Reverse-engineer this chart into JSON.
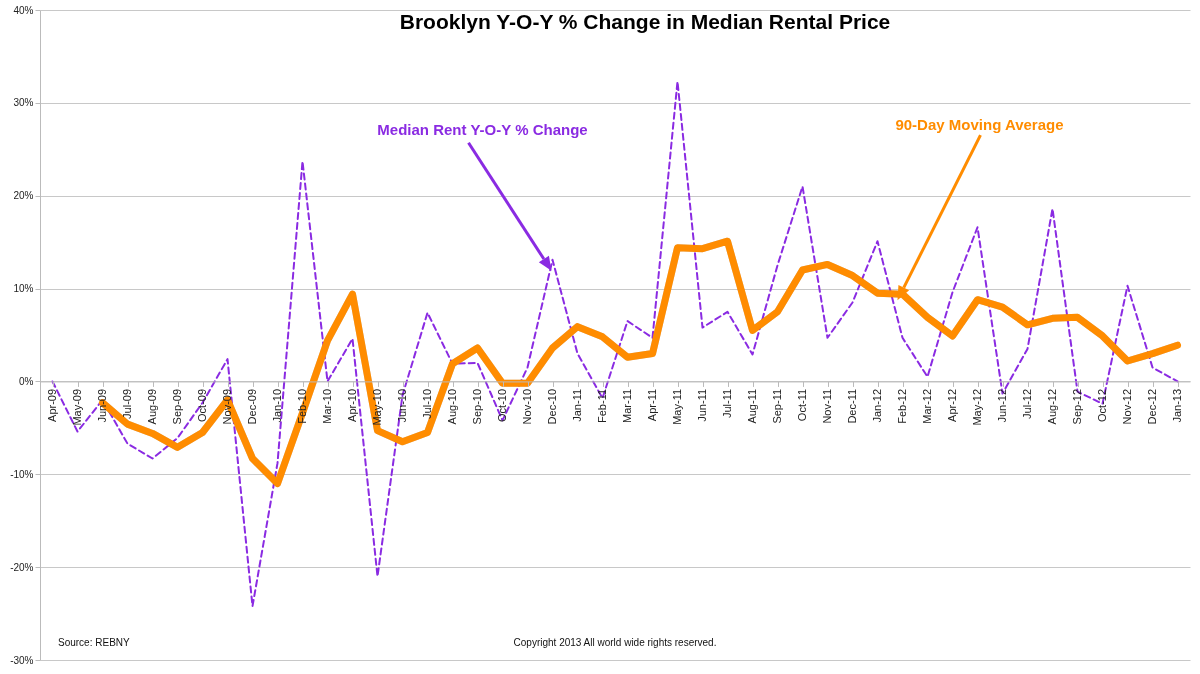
{
  "chart_data": {
    "type": "line",
    "title": "Brooklyn Y-O-Y % Change in Median Rental Price",
    "categories": [
      "Apr-09",
      "May-09",
      "Jun-09",
      "Jul-09",
      "Aug-09",
      "Sep-09",
      "Oct-09",
      "Nov-09",
      "Dec-09",
      "Jan-10",
      "Feb-10",
      "Mar-10",
      "Apr-10",
      "May-10",
      "Jun-10",
      "Jul-10",
      "Aug-10",
      "Sep-10",
      "Oct-10",
      "Nov-10",
      "Dec-10",
      "Jan-11",
      "Feb-11",
      "Mar-11",
      "Apr-11",
      "May-11",
      "Jun-11",
      "Jul-11",
      "Aug-11",
      "Sep-11",
      "Oct-11",
      "Nov-11",
      "Dec-11",
      "Jan-12",
      "Feb-12",
      "Mar-12",
      "Apr-12",
      "May-12",
      "Jun-12",
      "Jul-12",
      "Aug-12",
      "Sep-12",
      "Oct-12",
      "Nov-12",
      "Dec-12",
      "Jan-13"
    ],
    "series": [
      {
        "name": "Median Rent Y-O-Y % Change",
        "color": "#8a2be2",
        "line_style": "dashed",
        "values": [
          0,
          -5.4,
          -2,
          -6.7,
          -8.3,
          -6.1,
          -2.3,
          2.4,
          -24.2,
          -8.8,
          23.7,
          0,
          4.6,
          -21,
          -1.5,
          7.4,
          1.9,
          2,
          -4.2,
          1.5,
          13.1,
          3,
          -1.8,
          6.5,
          4.7,
          32.3,
          5.8,
          7.5,
          2.9,
          12.5,
          21,
          4.7,
          8.5,
          15.1,
          4.7,
          0.5,
          9.6,
          16.6,
          -1.3,
          3.5,
          18.6,
          -1.1,
          -2.4,
          10.3,
          1.5,
          0
        ]
      },
      {
        "name": "90-Day Moving Average",
        "color": "#ff8c00",
        "line_style": "solid",
        "values": [
          null,
          null,
          -2.3,
          -4.6,
          -5.6,
          -7.1,
          -5.5,
          -2,
          -8.3,
          -11,
          -3.4,
          4.4,
          9.4,
          -5.3,
          -6.5,
          -5.5,
          1.9,
          3.6,
          -0.2,
          -0.2,
          3.6,
          5.9,
          4.8,
          2.6,
          3,
          14.4,
          14.3,
          15.1,
          5.5,
          7.5,
          12,
          12.6,
          11.4,
          9.5,
          9.4,
          6.9,
          4.9,
          8.8,
          8,
          6.1,
          6.8,
          6.9,
          4.9,
          2.2,
          3,
          3.9
        ]
      }
    ],
    "ylim": [
      -30,
      40
    ],
    "yticks": [
      {
        "value": -30,
        "label": "-30%"
      },
      {
        "value": -20,
        "label": "-20%"
      },
      {
        "value": -10,
        "label": "-10%"
      },
      {
        "value": 0,
        "label": "0%"
      },
      {
        "value": 10,
        "label": "10%"
      },
      {
        "value": 20,
        "label": "20%"
      },
      {
        "value": 30,
        "label": "30%"
      },
      {
        "value": 40,
        "label": "40%"
      }
    ],
    "grid": "y",
    "legend": false,
    "marker": "none",
    "annotations": [
      "Source: REBNY",
      "Copyright 2013 All world wide rights reserved."
    ]
  }
}
